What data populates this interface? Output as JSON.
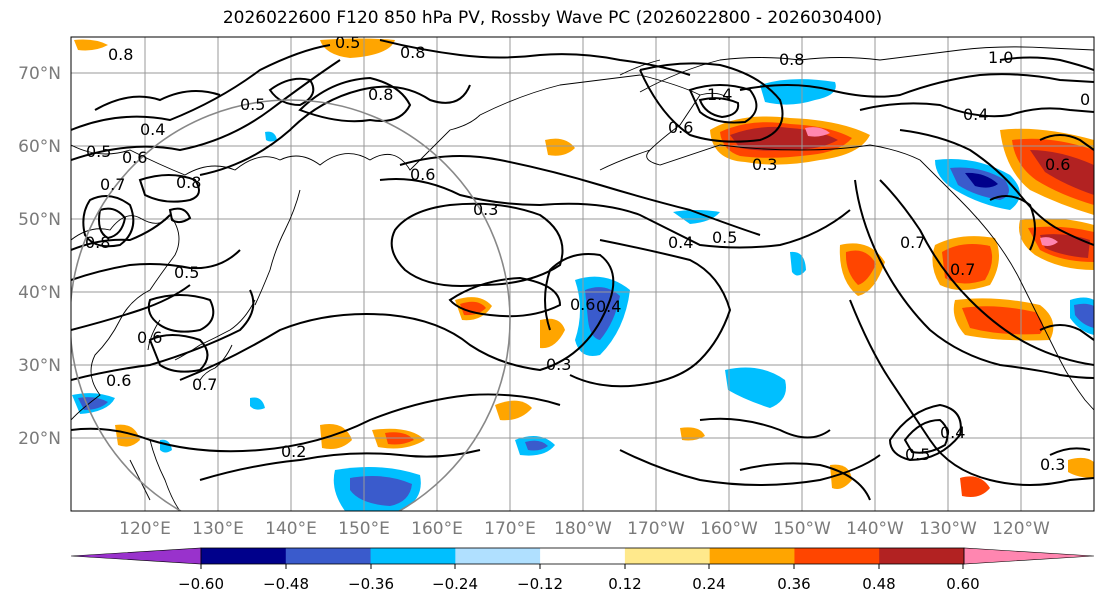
{
  "title": "2026022600 F120 850 hPa PV, Rossby Wave PC (2026022800 - 2026030400)",
  "latitude_labels": [
    "70°N",
    "60°N",
    "50°N",
    "40°N",
    "30°N",
    "20°N"
  ],
  "longitude_labels": [
    "120°E",
    "130°E",
    "140°E",
    "150°E",
    "160°E",
    "170°E",
    "180°W",
    "170°W",
    "160°W",
    "150°W",
    "140°W",
    "130°W",
    "120°W"
  ],
  "colorbar": {
    "tick_labels": [
      "−0.60",
      "−0.48",
      "−0.36",
      "−0.24",
      "−0.12",
      "0.12",
      "0.24",
      "0.36",
      "0.48",
      "0.60"
    ],
    "colors": [
      "#9932cc",
      "#00008b",
      "#3a5bcc",
      "#00bfff",
      "#b0e0ff",
      "#ffffff",
      "#ffe98c",
      "#ffa500",
      "#ff4500",
      "#b22222",
      "#ff86b0"
    ]
  },
  "contour_labels": [
    "0.5",
    "0.8",
    "0.8",
    "0.5",
    "0.8",
    "0.6",
    "0.7",
    "0.8",
    "0.4",
    "0.5",
    "0.6",
    "0.8",
    "0.6",
    "0.3",
    "0.4",
    "0.5",
    "0.6",
    "0.6",
    "0.7",
    "0.5",
    "0.4",
    "0.3",
    "0.2",
    "1.4",
    "0.6",
    "1.0",
    "0.7",
    "0.4",
    "0.8",
    "0.3",
    "0.5",
    "0.4",
    "0.6",
    "0.7",
    "0.3",
    "0"
  ]
}
